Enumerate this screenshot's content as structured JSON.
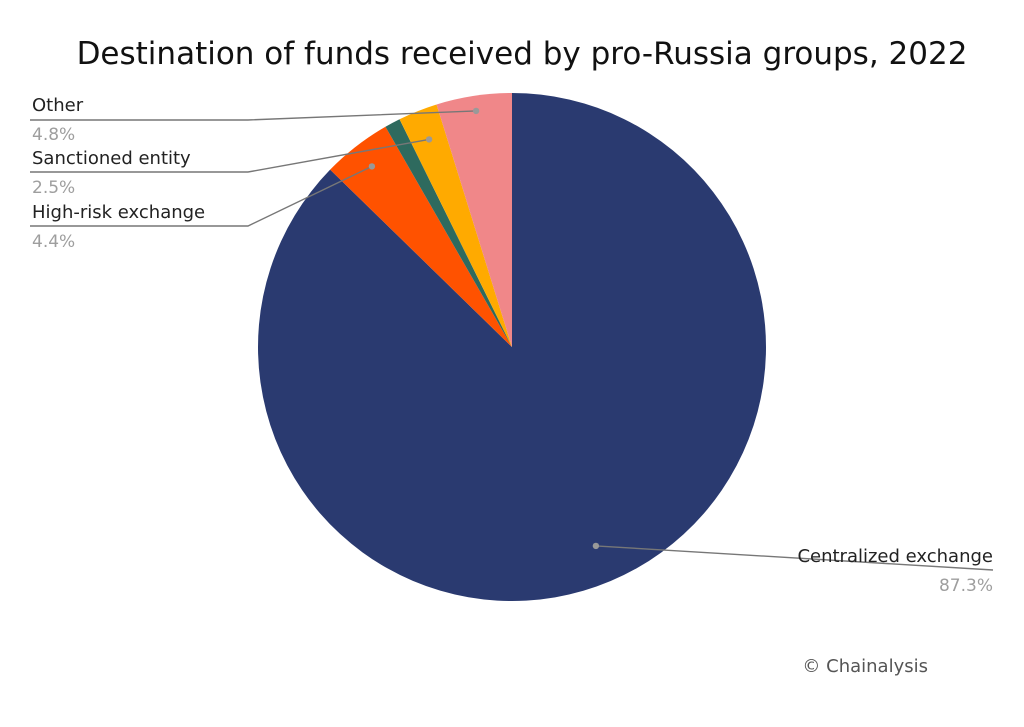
{
  "chart_data": {
    "type": "pie",
    "title": "Destination of funds received by pro-Russia groups, 2022",
    "start": "top",
    "direction": "clockwise",
    "slices": [
      {
        "label": "Centralized exchange",
        "value": 87.3,
        "display": "87.3%",
        "color": "#2a3a70"
      },
      {
        "label": "High-risk exchange",
        "value": 4.4,
        "display": "4.4%",
        "color": "#ff5200"
      },
      {
        "label": "",
        "value": 1.0,
        "display": "",
        "color": "#2e6a5e"
      },
      {
        "label": "Sanctioned entity",
        "value": 2.5,
        "display": "2.5%",
        "color": "#ffaa00"
      },
      {
        "label": "Other",
        "value": 4.8,
        "display": "4.8%",
        "color": "#f08789"
      }
    ]
  },
  "footer": {
    "copyright": "© Chainalysis"
  }
}
